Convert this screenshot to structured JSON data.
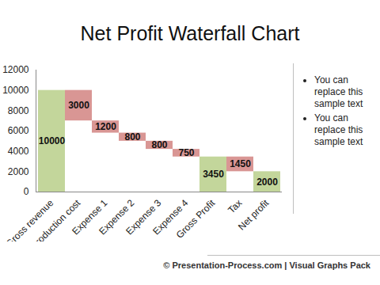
{
  "chart_data": {
    "type": "waterfall",
    "title": "Net Profit Waterfall Chart",
    "categories": [
      "Gross revenue",
      "Production cost",
      "Expense 1",
      "Expense 2",
      "Expense 3",
      "Expense 4",
      "Gross Profit",
      "Tax",
      "Net profit"
    ],
    "values": [
      10000,
      3000,
      1200,
      800,
      800,
      750,
      3450,
      1450,
      2000
    ],
    "colors": [
      "#c3d69b",
      "#d99694",
      "#d99694",
      "#d99694",
      "#d99694",
      "#d99694",
      "#c3d69b",
      "#d99694",
      "#c3d69b"
    ],
    "ylim": [
      0,
      12000
    ],
    "yticks": [
      0,
      2000,
      4000,
      6000,
      8000,
      10000,
      12000
    ],
    "grid": false,
    "data_labels": true,
    "annotations": [
      "You can replace this sample text",
      "You can replace this sample text"
    ],
    "caption": "© Presentation-Process.com | Visual Graphs Pack"
  }
}
